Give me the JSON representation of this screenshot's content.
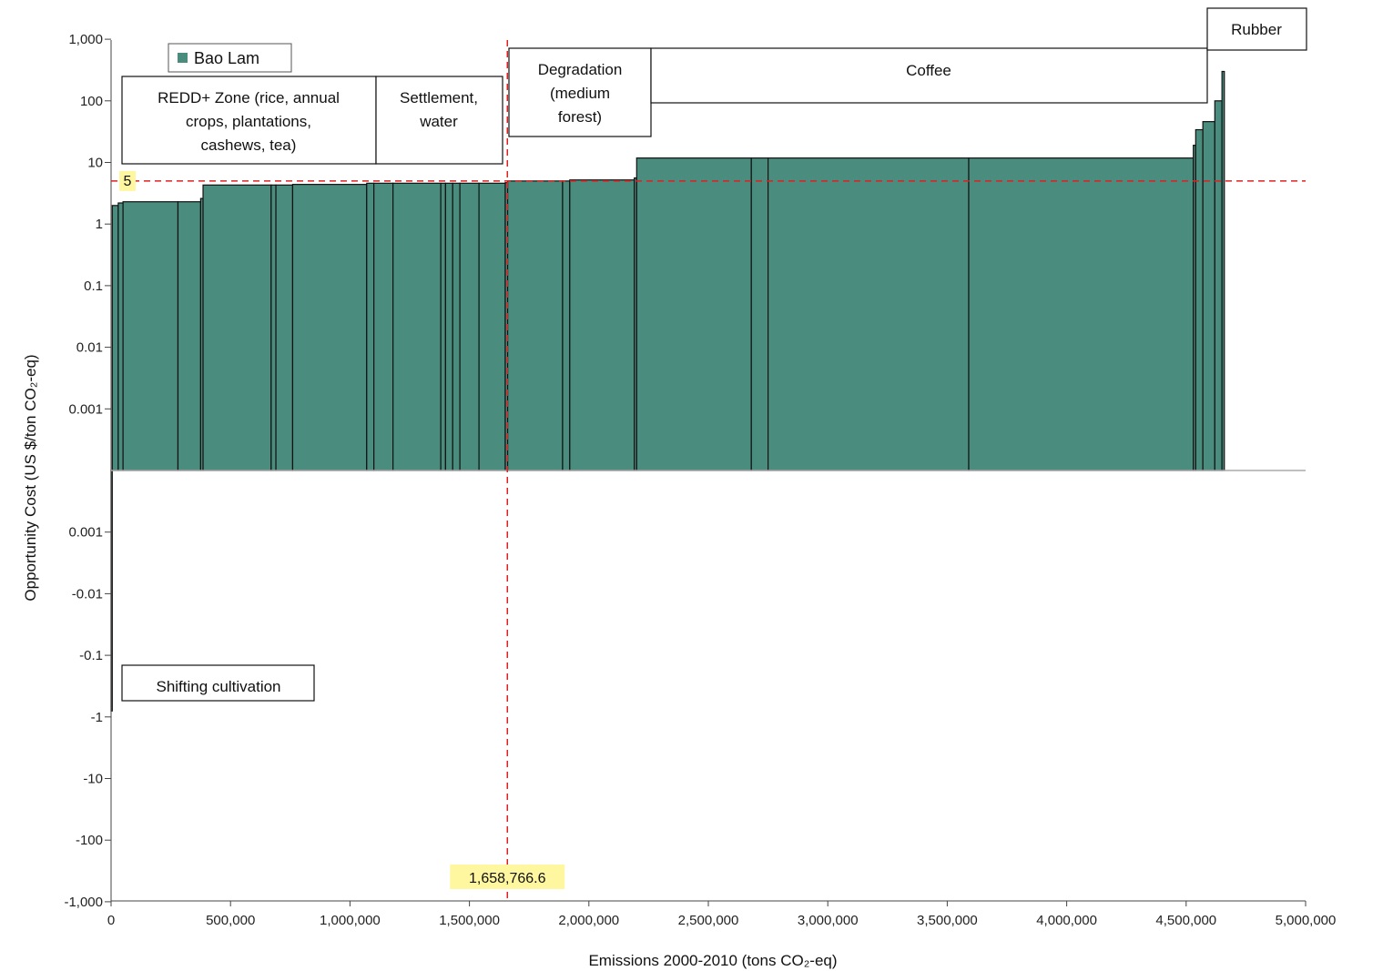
{
  "chart_data": {
    "type": "bar",
    "subtype": "marginal-abatement-cost-curve",
    "xlabel": "Emissions 2000-2010 (tons CO₂-eq)",
    "ylabel": "Opportunity Cost (US $/ton CO₂-eq)",
    "y_scale": "symmetric-log",
    "xlim": [
      0,
      5000000
    ],
    "x_ticks": [
      {
        "value": 0,
        "label": "0"
      },
      {
        "value": 500000,
        "label": "500,000"
      },
      {
        "value": 1000000,
        "label": "1,000,000"
      },
      {
        "value": 1500000,
        "label": "1,500,000"
      },
      {
        "value": 2000000,
        "label": "2,000,000"
      },
      {
        "value": 2500000,
        "label": "2,500,000"
      },
      {
        "value": 3000000,
        "label": "3,000,000"
      },
      {
        "value": 3500000,
        "label": "3,500,000"
      },
      {
        "value": 4000000,
        "label": "4,000,000"
      },
      {
        "value": 4500000,
        "label": "4,500,000"
      },
      {
        "value": 5000000,
        "label": "5,000,000"
      }
    ],
    "y_ticks": [
      {
        "value": 1000,
        "label": "1,000"
      },
      {
        "value": 100,
        "label": "100"
      },
      {
        "value": 10,
        "label": "10"
      },
      {
        "value": 1,
        "label": "1"
      },
      {
        "value": 0.1,
        "label": "0.1"
      },
      {
        "value": 0.01,
        "label": "0.01"
      },
      {
        "value": 0.001,
        "label": "0.001"
      },
      {
        "value": -0.001,
        "label": "0.001"
      },
      {
        "value": -0.01,
        "label": "-0.01"
      },
      {
        "value": -0.1,
        "label": "-0.1"
      },
      {
        "value": -1,
        "label": "-1"
      },
      {
        "value": -10,
        "label": "-10"
      },
      {
        "value": -100,
        "label": "-100"
      },
      {
        "value": -1000,
        "label": "-1,000"
      }
    ],
    "series": [
      {
        "name": "Bao Lam",
        "color": "#4a8c7e",
        "bars": [
          {
            "x0": 0,
            "x1": 5000,
            "value": -0.8
          },
          {
            "x0": 5000,
            "x1": 30000,
            "value": 2.0
          },
          {
            "x0": 30000,
            "x1": 50000,
            "value": 2.2
          },
          {
            "x0": 50000,
            "x1": 280000,
            "value": 2.3
          },
          {
            "x0": 280000,
            "x1": 375000,
            "value": 2.3
          },
          {
            "x0": 375000,
            "x1": 385000,
            "value": 2.6
          },
          {
            "x0": 385000,
            "x1": 670000,
            "value": 4.3
          },
          {
            "x0": 670000,
            "x1": 690000,
            "value": 4.3
          },
          {
            "x0": 690000,
            "x1": 760000,
            "value": 4.3
          },
          {
            "x0": 760000,
            "x1": 1070000,
            "value": 4.4
          },
          {
            "x0": 1070000,
            "x1": 1100000,
            "value": 4.6
          },
          {
            "x0": 1100000,
            "x1": 1180000,
            "value": 4.6
          },
          {
            "x0": 1180000,
            "x1": 1380000,
            "value": 4.6
          },
          {
            "x0": 1380000,
            "x1": 1400000,
            "value": 4.6
          },
          {
            "x0": 1400000,
            "x1": 1430000,
            "value": 4.6
          },
          {
            "x0": 1430000,
            "x1": 1460000,
            "value": 4.6
          },
          {
            "x0": 1460000,
            "x1": 1540000,
            "value": 4.6
          },
          {
            "x0": 1540000,
            "x1": 1650000,
            "value": 4.6
          },
          {
            "x0": 1650000,
            "x1": 1660000,
            "value": 4.7
          },
          {
            "x0": 1660000,
            "x1": 1890000,
            "value": 5.0
          },
          {
            "x0": 1890000,
            "x1": 1920000,
            "value": 5.0
          },
          {
            "x0": 1920000,
            "x1": 2190000,
            "value": 5.2
          },
          {
            "x0": 2190000,
            "x1": 2200000,
            "value": 5.6
          },
          {
            "x0": 2200000,
            "x1": 2680000,
            "value": 11.8
          },
          {
            "x0": 2680000,
            "x1": 2750000,
            "value": 11.8
          },
          {
            "x0": 2750000,
            "x1": 3590000,
            "value": 11.8
          },
          {
            "x0": 3590000,
            "x1": 4530000,
            "value": 11.8
          },
          {
            "x0": 4530000,
            "x1": 4540000,
            "value": 19
          },
          {
            "x0": 4540000,
            "x1": 4570000,
            "value": 34
          },
          {
            "x0": 4570000,
            "x1": 4620000,
            "value": 46
          },
          {
            "x0": 4620000,
            "x1": 4650000,
            "value": 100
          },
          {
            "x0": 4650000,
            "x1": 4660000,
            "value": 300
          }
        ]
      }
    ],
    "reference_lines": [
      {
        "orientation": "horizontal",
        "value": 5,
        "label": "5",
        "color": "#e02020",
        "style": "dashed"
      },
      {
        "orientation": "vertical",
        "value": 1658766.6,
        "label": "1,658,766.6",
        "color": "#e02020",
        "style": "dashed"
      }
    ],
    "legend": {
      "placement": "top-left",
      "entries": [
        {
          "label": "Bao Lam",
          "color": "#4a8c7e"
        }
      ]
    },
    "annotations": [
      {
        "id": "redd",
        "lines": [
          "REDD+ Zone (rice, annual",
          "crops, plantations,",
          "cashews, tea)"
        ]
      },
      {
        "id": "settlement",
        "lines": [
          "Settlement,",
          "water"
        ]
      },
      {
        "id": "degradation",
        "lines": [
          "Degradation",
          "(medium",
          "forest)"
        ]
      },
      {
        "id": "coffee",
        "lines": [
          "Coffee"
        ]
      },
      {
        "id": "rubber",
        "lines": [
          "Rubber"
        ]
      },
      {
        "id": "shifting",
        "lines": [
          "Shifting cultivation"
        ]
      }
    ],
    "grid": false
  }
}
